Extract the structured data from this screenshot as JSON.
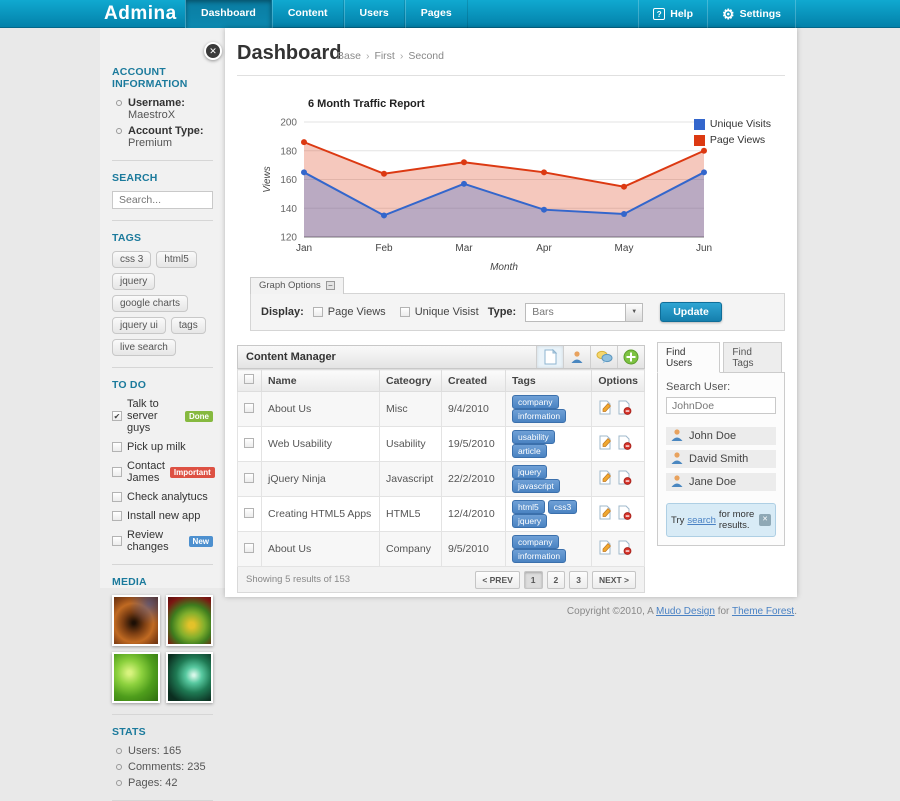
{
  "topbar": {
    "logo": "Admina",
    "tabs": [
      {
        "label": "Dashboard",
        "active": true
      },
      {
        "label": "Content",
        "active": false
      },
      {
        "label": "Users",
        "active": false
      },
      {
        "label": "Pages",
        "active": false
      }
    ],
    "help_label": "Help",
    "settings_label": "Settings",
    "bar_color": "#0A95BD"
  },
  "sidebar": {
    "account": {
      "heading": "ACCOUNT INFORMATION",
      "items": [
        {
          "label": "Username:",
          "value": "MaestroX"
        },
        {
          "label": "Account Type:",
          "value": "Premium"
        }
      ]
    },
    "search": {
      "heading": "SEARCH",
      "placeholder": "Search..."
    },
    "tags": {
      "heading": "TAGS",
      "items": [
        "css 3",
        "html5",
        "jquery",
        "google charts",
        "jquery ui",
        "tags",
        "live search"
      ]
    },
    "todo": {
      "heading": "TO DO",
      "items": [
        {
          "label": "Talk to server guys",
          "checked": true,
          "badge": "Done",
          "badge_color": "#86B93F"
        },
        {
          "label": "Pick up milk",
          "checked": false
        },
        {
          "label": "Contact James",
          "checked": false,
          "badge": "Important",
          "badge_color": "#DD5143"
        },
        {
          "label": "Check analytucs",
          "checked": false
        },
        {
          "label": "Install new app",
          "checked": false
        },
        {
          "label": "Review changes",
          "checked": false,
          "badge": "New",
          "badge_color": "#4D90CF"
        }
      ]
    },
    "media": {
      "heading": "MEDIA",
      "thumbnails": [
        "fractal-orange",
        "fractal-flower",
        "fractal-green",
        "fractal-swirl"
      ]
    },
    "stats": {
      "heading": "STATS",
      "items": [
        "Users: 165",
        "Comments: 235",
        "Pages: 42"
      ]
    }
  },
  "main": {
    "title": "Dashboard",
    "breadcrumb": [
      "Base",
      "First",
      "Second"
    ],
    "graph_options": {
      "tab_label": "Graph Options",
      "display_label": "Display:",
      "checkboxes": [
        "Page Views",
        "Unique Visist"
      ],
      "type_label": "Type:",
      "type_value": "Bars",
      "update_label": "Update"
    },
    "content_manager": {
      "title": "Content Manager",
      "toolbar_icons": [
        "new-page-icon",
        "user-icon",
        "comments-icon",
        "add-icon"
      ],
      "columns": [
        "Name",
        "Cateogry",
        "Created",
        "Tags",
        "Options"
      ],
      "row_option_icons": [
        "edit-icon",
        "delete-icon"
      ],
      "rows": [
        {
          "name": "About Us",
          "category": "Misc",
          "created": "9/4/2010",
          "tags": [
            "company",
            "information"
          ]
        },
        {
          "name": "Web Usability",
          "category": "Usability",
          "created": "19/5/2010",
          "tags": [
            "usability",
            "article"
          ]
        },
        {
          "name": "jQuery Ninja",
          "category": "Javascript",
          "created": "22/2/2010",
          "tags": [
            "jquery",
            "javascript"
          ]
        },
        {
          "name": "Creating HTML5 Apps",
          "category": "HTML5",
          "created": "12/4/2010",
          "tags": [
            "html5",
            "css3",
            "jquery"
          ]
        },
        {
          "name": "About Us",
          "category": "Company",
          "created": "9/5/2010",
          "tags": [
            "company",
            "information"
          ]
        }
      ],
      "results_text": "Showing 5 results of 153",
      "pagination": [
        "< PREV",
        "1",
        "2",
        "3",
        "NEXT >"
      ],
      "active_page": "1"
    },
    "find_users": {
      "tabs": [
        "Find Users",
        "Find Tags"
      ],
      "active_tab": "Find Users",
      "search_label": "Search User:",
      "search_value": "JohnDoe",
      "users": [
        "John Doe",
        "David Smith",
        "Jane Doe"
      ],
      "hint_prefix": "Try ",
      "hint_link": "search",
      "hint_suffix": " for more results."
    }
  },
  "chart_data": {
    "type": "area",
    "title": "6 Month Traffic Report",
    "x": [
      "Jan",
      "Feb",
      "Mar",
      "Apr",
      "May",
      "Jun"
    ],
    "xlabel": "Month",
    "ylabel": "Views",
    "ylim": [
      120,
      200
    ],
    "yticks": [
      120,
      140,
      160,
      180,
      200
    ],
    "grid": true,
    "legend_position": "top-right",
    "series": [
      {
        "name": "Unique Visits",
        "color": "#3366CC",
        "fill": "rgba(51,102,204,0.30)",
        "values": [
          165,
          135,
          157,
          139,
          136,
          165
        ]
      },
      {
        "name": "Page Views",
        "color": "#DC3912",
        "fill": "rgba(220,57,18,0.28)",
        "values": [
          186,
          164,
          172,
          165,
          155,
          180
        ]
      }
    ]
  },
  "footer": {
    "prefix": "Copyright ©2010, A ",
    "link1": "Mudo Design",
    "middle": " for ",
    "link2": "Theme Forest",
    "suffix": "."
  }
}
